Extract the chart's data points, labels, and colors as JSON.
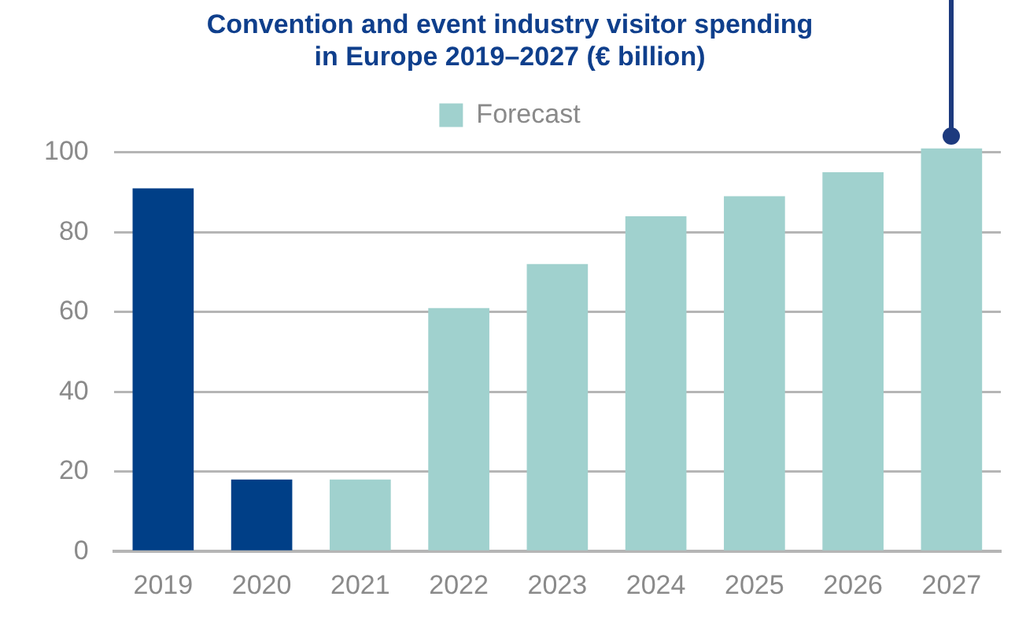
{
  "chart_data": {
    "type": "bar",
    "title": [
      "Convention and event industry visitor spending",
      "in Europe 2019–2027 (€ billion)"
    ],
    "categories": [
      "2019",
      "2020",
      "2021",
      "2022",
      "2023",
      "2024",
      "2025",
      "2026",
      "2027"
    ],
    "series": [
      {
        "color": "#003f87",
        "values": [
          91,
          18,
          null,
          null,
          null,
          null,
          null,
          null,
          null
        ]
      },
      {
        "name": "Forecast",
        "color": "#a0d1ce",
        "values": [
          null,
          null,
          18,
          61,
          72,
          84,
          89,
          95,
          101
        ]
      }
    ],
    "ylim": [
      0,
      102
    ],
    "yticks": [
      0,
      20,
      40,
      60,
      80,
      100
    ],
    "grid": "y",
    "legend": "top"
  }
}
